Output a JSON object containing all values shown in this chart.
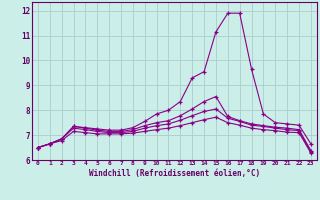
{
  "xlabel": "Windchill (Refroidissement éolien,°C)",
  "background_color": "#cceee8",
  "grid_color": "#aacccc",
  "line_color": "#880088",
  "x_labels": [
    "0",
    "1",
    "2",
    "3",
    "4",
    "5",
    "6",
    "7",
    "8",
    "9",
    "10",
    "11",
    "12",
    "13",
    "14",
    "15",
    "16",
    "17",
    "18",
    "19",
    "20",
    "21",
    "22",
    "23"
  ],
  "xlim": [
    -0.5,
    23.5
  ],
  "ylim": [
    6.0,
    12.35
  ],
  "yticks": [
    6,
    7,
    8,
    9,
    10,
    11,
    12
  ],
  "series": [
    [
      6.5,
      6.65,
      6.85,
      7.35,
      7.3,
      7.25,
      7.2,
      7.2,
      7.3,
      7.55,
      7.85,
      8.0,
      8.35,
      9.3,
      9.55,
      11.15,
      11.9,
      11.9,
      9.65,
      7.85,
      7.5,
      7.45,
      7.4,
      6.65
    ],
    [
      6.5,
      6.65,
      6.85,
      7.35,
      7.28,
      7.2,
      7.15,
      7.15,
      7.22,
      7.38,
      7.5,
      7.58,
      7.78,
      8.05,
      8.35,
      8.55,
      7.75,
      7.58,
      7.45,
      7.38,
      7.32,
      7.28,
      7.22,
      6.38
    ],
    [
      6.5,
      6.65,
      6.85,
      7.28,
      7.22,
      7.15,
      7.1,
      7.1,
      7.15,
      7.28,
      7.38,
      7.45,
      7.6,
      7.78,
      7.95,
      8.05,
      7.68,
      7.55,
      7.4,
      7.35,
      7.28,
      7.22,
      7.18,
      6.32
    ],
    [
      6.5,
      6.65,
      6.78,
      7.15,
      7.1,
      7.05,
      7.05,
      7.05,
      7.08,
      7.15,
      7.22,
      7.28,
      7.38,
      7.5,
      7.62,
      7.72,
      7.5,
      7.4,
      7.28,
      7.22,
      7.18,
      7.12,
      7.1,
      6.28
    ]
  ]
}
